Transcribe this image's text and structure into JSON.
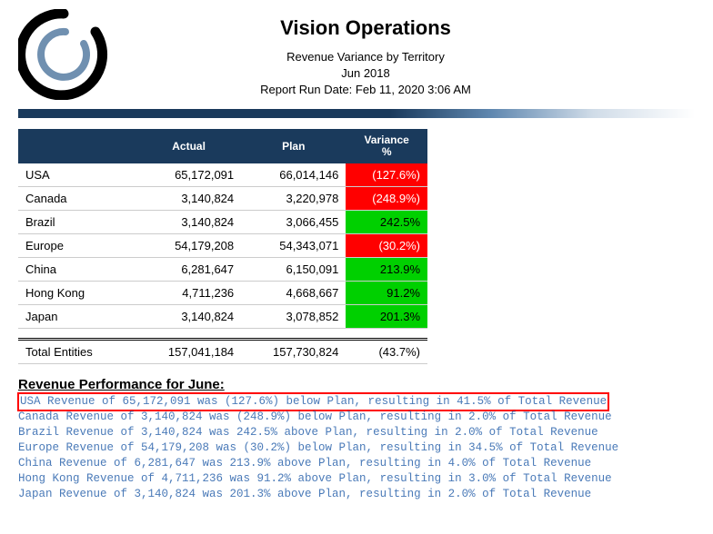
{
  "header": {
    "title": "Vision Operations",
    "subtitle1": "Revenue Variance by Territory",
    "subtitle2": "Jun 2018",
    "subtitle3": "Report Run Date: Feb 11, 2020 3:06 AM"
  },
  "table": {
    "col_blank": "",
    "col_actual": "Actual",
    "col_plan": "Plan",
    "col_var1": "Variance",
    "col_var2": "%",
    "rows": [
      {
        "label": "USA",
        "actual": "65,172,091",
        "plan": "66,014,146",
        "variance": "(127.6%)",
        "cls": "neg"
      },
      {
        "label": "Canada",
        "actual": "3,140,824",
        "plan": "3,220,978",
        "variance": "(248.9%)",
        "cls": "neg"
      },
      {
        "label": "Brazil",
        "actual": "3,140,824",
        "plan": "3,066,455",
        "variance": "242.5%",
        "cls": "pos"
      },
      {
        "label": "Europe",
        "actual": "54,179,208",
        "plan": "54,343,071",
        "variance": "(30.2%)",
        "cls": "neg"
      },
      {
        "label": "China",
        "actual": "6,281,647",
        "plan": "6,150,091",
        "variance": "213.9%",
        "cls": "pos"
      },
      {
        "label": "Hong Kong",
        "actual": "4,711,236",
        "plan": "4,668,667",
        "variance": "91.2%",
        "cls": "pos"
      },
      {
        "label": "Japan",
        "actual": "3,140,824",
        "plan": "3,078,852",
        "variance": "201.3%",
        "cls": "pos"
      }
    ],
    "total": {
      "label": "Total Entities",
      "actual": "157,041,184",
      "plan": "157,730,824",
      "variance": "(43.7%)"
    }
  },
  "perf": {
    "title": "Revenue Performance for June:",
    "lines": [
      "USA Revenue of 65,172,091 was (127.6%) below Plan, resulting in 41.5% of Total Revenue",
      "Canada Revenue of 3,140,824 was (248.9%) below Plan, resulting in 2.0% of Total Revenue",
      "Brazil Revenue of 3,140,824 was 242.5% above Plan, resulting in 2.0% of Total Revenue",
      "Europe Revenue of 54,179,208 was (30.2%) below Plan, resulting in 34.5% of Total Revenue",
      "China Revenue of 6,281,647 was 213.9% above Plan, resulting in 4.0% of Total Revenue",
      "Hong Kong Revenue of 4,711,236 was 91.2% above Plan, resulting in 3.0% of Total Revenue",
      "Japan Revenue of 3,140,824 was 201.3% above Plan, resulting in 2.0% of Total Revenue"
    ],
    "highlight_index": 0
  },
  "colors": {
    "header_bg": "#1a3a5c",
    "neg_bg": "#ff0000",
    "pos_bg": "#00d000",
    "link_text": "#4a7ab8",
    "highlight_border": "#ff0000"
  }
}
